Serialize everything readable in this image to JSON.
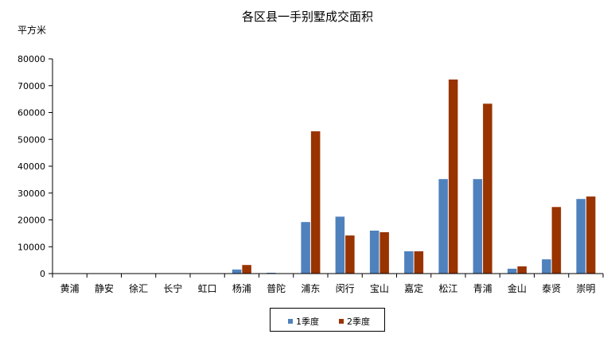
{
  "chart_data": {
    "type": "bar",
    "title": "各区县一手别墅成交面积",
    "ylabel": "平方米",
    "xlabel": "",
    "ylim": [
      0,
      80000
    ],
    "yticks": [
      "0",
      "10000",
      "20000",
      "30000",
      "40000",
      "50000",
      "60000",
      "70000",
      "80000"
    ],
    "categories": [
      "黄浦",
      "静安",
      "徐汇",
      "长宁",
      "虹口",
      "杨浦",
      "普陀",
      "浦东",
      "闵行",
      "宝山",
      "嘉定",
      "松江",
      "青浦",
      "金山",
      "泰贤",
      "崇明"
    ],
    "series": [
      {
        "name": "1季度",
        "color": "#4f81bd",
        "values": [
          0,
          0,
          0,
          0,
          0,
          1500,
          300,
          19200,
          21200,
          16000,
          8300,
          35200,
          35200,
          1800,
          5300,
          27800
        ]
      },
      {
        "name": "2季度",
        "color": "#993300",
        "values": [
          0,
          0,
          0,
          0,
          0,
          3200,
          0,
          53000,
          14200,
          15400,
          8300,
          72300,
          63300,
          2700,
          24800,
          28700
        ]
      }
    ],
    "grid": false,
    "legend_position": "bottom"
  }
}
